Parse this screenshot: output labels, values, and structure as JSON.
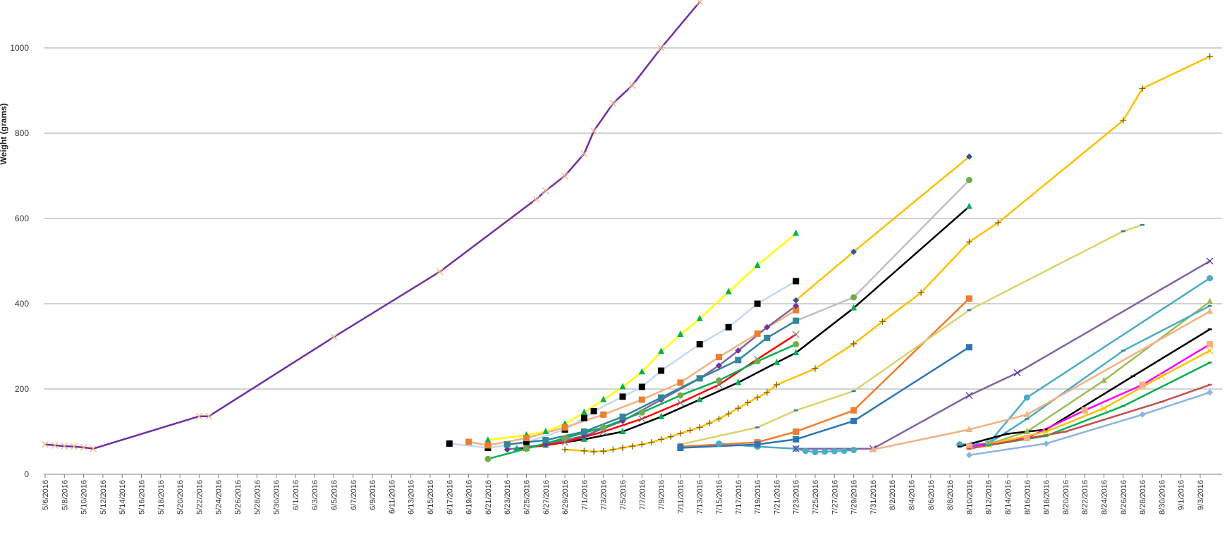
{
  "chart_data": {
    "type": "line",
    "title": "",
    "xlabel": "",
    "ylabel": "Weight (grams)",
    "x_axis_type": "date",
    "xlim": [
      "2016-05-06",
      "2016-09-05"
    ],
    "ylim": [
      0,
      1100
    ],
    "y_ticks": [
      0,
      200,
      400,
      600,
      800,
      1000
    ],
    "x_tick_start": "2016-05-06",
    "x_tick_end": "2016-09-03",
    "x_tick_step_days": 2,
    "x_tick_labels": [
      "5/6/2016",
      "5/8/2016",
      "5/10/2016",
      "5/12/2016",
      "5/14/2016",
      "5/16/2016",
      "5/18/2016",
      "5/20/2016",
      "5/22/2016",
      "5/24/2016",
      "5/26/2016",
      "5/28/2016",
      "5/30/2016",
      "6/1/2016",
      "6/3/2016",
      "6/5/2016",
      "6/7/2016",
      "6/9/2016",
      "6/11/2016",
      "6/13/2016",
      "6/15/2016",
      "6/17/2016",
      "6/19/2016",
      "6/21/2016",
      "6/23/2016",
      "6/25/2016",
      "6/27/2016",
      "6/29/2016",
      "7/1/2016",
      "7/3/2016",
      "7/5/2016",
      "7/7/2016",
      "7/9/2016",
      "7/11/2016",
      "7/13/2016",
      "7/15/2016",
      "7/17/2016",
      "7/19/2016",
      "7/21/2016",
      "7/23/2016",
      "7/25/2016",
      "7/27/2016",
      "7/29/2016",
      "7/31/2016",
      "8/2/2016",
      "8/4/2016",
      "8/6/2016",
      "8/8/2016",
      "8/10/2016",
      "8/12/2016",
      "8/14/2016",
      "8/16/2016",
      "8/18/2016",
      "8/20/2016",
      "8/22/2016",
      "8/24/2016",
      "8/26/2016",
      "8/28/2016",
      "8/30/2016",
      "9/1/2016",
      "9/3/2016"
    ],
    "grid": true,
    "legend": "none",
    "series": [
      {
        "color": "#7030A0",
        "marker": "x",
        "marker_color": "#F4B183",
        "points": [
          [
            "2016-05-06",
            70
          ],
          [
            "2016-05-07",
            68
          ],
          [
            "2016-05-08",
            66
          ],
          [
            "2016-05-09",
            65
          ],
          [
            "2016-05-10",
            63
          ],
          [
            "2016-05-11",
            60
          ],
          [
            "2016-05-22",
            136
          ],
          [
            "2016-05-23",
            136
          ],
          [
            "2016-06-05",
            322
          ],
          [
            "2016-06-16",
            475
          ],
          [
            "2016-06-26",
            645
          ],
          [
            "2016-06-27",
            665
          ],
          [
            "2016-06-29",
            700
          ],
          [
            "2016-07-01",
            752
          ],
          [
            "2016-07-02",
            805
          ],
          [
            "2016-07-04",
            870
          ],
          [
            "2016-07-06",
            912
          ],
          [
            "2016-07-09",
            1000
          ],
          [
            "2016-07-13",
            1108
          ]
        ]
      },
      {
        "color": "#FFC000",
        "marker": "plus",
        "marker_color": "#7F6000",
        "points": [
          [
            "2016-06-29",
            58
          ],
          [
            "2016-07-01",
            55
          ],
          [
            "2016-07-02",
            53
          ],
          [
            "2016-07-03",
            54
          ],
          [
            "2016-07-04",
            58
          ],
          [
            "2016-07-05",
            62
          ],
          [
            "2016-07-06",
            66
          ],
          [
            "2016-07-07",
            70
          ],
          [
            "2016-07-08",
            75
          ],
          [
            "2016-07-09",
            82
          ],
          [
            "2016-07-10",
            88
          ],
          [
            "2016-07-11",
            96
          ],
          [
            "2016-07-12",
            103
          ],
          [
            "2016-07-13",
            110
          ],
          [
            "2016-07-14",
            120
          ],
          [
            "2016-07-15",
            130
          ],
          [
            "2016-07-16",
            142
          ],
          [
            "2016-07-17",
            155
          ],
          [
            "2016-07-18",
            168
          ],
          [
            "2016-07-19",
            180
          ],
          [
            "2016-07-20",
            192
          ],
          [
            "2016-07-21",
            210
          ],
          [
            "2016-07-25",
            248
          ],
          [
            "2016-07-29",
            306
          ],
          [
            "2016-08-01",
            358
          ],
          [
            "2016-08-05",
            426
          ],
          [
            "2016-08-10",
            545
          ],
          [
            "2016-08-13",
            590
          ],
          [
            "2016-08-26",
            830
          ],
          [
            "2016-08-28",
            905
          ],
          [
            "2016-09-04",
            980
          ]
        ]
      },
      {
        "color": "#FFFF00",
        "marker": "triangle",
        "marker_color": "#00B050",
        "points": [
          [
            "2016-06-21",
            80
          ],
          [
            "2016-06-25",
            92
          ],
          [
            "2016-06-27",
            100
          ],
          [
            "2016-06-29",
            118
          ],
          [
            "2016-07-01",
            145
          ],
          [
            "2016-07-03",
            175
          ],
          [
            "2016-07-05",
            205
          ],
          [
            "2016-07-07",
            240
          ],
          [
            "2016-07-09",
            288
          ],
          [
            "2016-07-11",
            328
          ],
          [
            "2016-07-13",
            365
          ],
          [
            "2016-07-16",
            428
          ],
          [
            "2016-07-19",
            490
          ],
          [
            "2016-07-23",
            565
          ]
        ]
      },
      {
        "color": "#FFC000",
        "marker": "diamond",
        "marker_color": "#2F5597",
        "points": [
          [
            "2016-07-23",
            408
          ],
          [
            "2016-07-29",
            522
          ],
          [
            "2016-08-10",
            745
          ]
        ]
      },
      {
        "color": "#BFBFBF",
        "marker": "circle",
        "marker_color": "#70AD47",
        "points": [
          [
            "2016-07-23",
            360
          ],
          [
            "2016-07-29",
            415
          ],
          [
            "2016-08-10",
            690
          ]
        ]
      },
      {
        "color": "#000000",
        "marker": "triangle",
        "marker_color": "#00B050",
        "points": [
          [
            "2016-06-24",
            60
          ],
          [
            "2016-06-27",
            68
          ],
          [
            "2016-07-01",
            82
          ],
          [
            "2016-07-05",
            100
          ],
          [
            "2016-07-09",
            135
          ],
          [
            "2016-07-13",
            175
          ],
          [
            "2016-07-17",
            215
          ],
          [
            "2016-07-21",
            262
          ],
          [
            "2016-07-23",
            285
          ],
          [
            "2016-07-29",
            390
          ],
          [
            "2016-08-10",
            628
          ]
        ]
      },
      {
        "color": "#C5D9F1",
        "marker": "square",
        "marker_color": "#000000",
        "points": [
          [
            "2016-06-17",
            72
          ],
          [
            "2016-06-21",
            62
          ],
          [
            "2016-06-25",
            75
          ],
          [
            "2016-06-29",
            105
          ],
          [
            "2016-07-01",
            132
          ],
          [
            "2016-07-02",
            148
          ],
          [
            "2016-07-05",
            182
          ],
          [
            "2016-07-07",
            205
          ],
          [
            "2016-07-09",
            243
          ],
          [
            "2016-07-13",
            305
          ],
          [
            "2016-07-16",
            345
          ],
          [
            "2016-07-19",
            400
          ],
          [
            "2016-07-23",
            453
          ]
        ]
      },
      {
        "color": "#F4B183",
        "marker": "square",
        "marker_color": "#ED7D31",
        "points": [
          [
            "2016-06-19",
            76
          ],
          [
            "2016-06-21",
            68
          ],
          [
            "2016-06-25",
            85
          ],
          [
            "2016-06-29",
            110
          ],
          [
            "2016-07-03",
            140
          ],
          [
            "2016-07-07",
            175
          ],
          [
            "2016-07-11",
            215
          ],
          [
            "2016-07-15",
            275
          ],
          [
            "2016-07-19",
            330
          ],
          [
            "2016-07-23",
            385
          ]
        ]
      },
      {
        "color": "#8064A2",
        "marker": "diamond",
        "marker_color": "#7030A0",
        "points": [
          [
            "2016-06-23",
            58
          ],
          [
            "2016-06-27",
            70
          ],
          [
            "2016-07-01",
            90
          ],
          [
            "2016-07-05",
            125
          ],
          [
            "2016-07-09",
            175
          ],
          [
            "2016-07-13",
            225
          ],
          [
            "2016-07-15",
            255
          ],
          [
            "2016-07-17",
            290
          ],
          [
            "2016-07-20",
            345
          ],
          [
            "2016-07-23",
            395
          ]
        ]
      },
      {
        "color": "#31859C",
        "marker": "square",
        "marker_color": "#31859C",
        "points": [
          [
            "2016-06-23",
            70
          ],
          [
            "2016-06-27",
            80
          ],
          [
            "2016-07-01",
            100
          ],
          [
            "2016-07-05",
            135
          ],
          [
            "2016-07-09",
            180
          ],
          [
            "2016-07-13",
            225
          ],
          [
            "2016-07-17",
            268
          ],
          [
            "2016-07-20",
            320
          ],
          [
            "2016-07-23",
            360
          ]
        ]
      },
      {
        "color": "#FF0000",
        "marker": "x",
        "marker_color": "#808080",
        "points": [
          [
            "2016-06-25",
            62
          ],
          [
            "2016-06-29",
            75
          ],
          [
            "2016-07-03",
            100
          ],
          [
            "2016-07-07",
            130
          ],
          [
            "2016-07-11",
            168
          ],
          [
            "2016-07-15",
            210
          ],
          [
            "2016-07-19",
            270
          ],
          [
            "2016-07-23",
            328
          ]
        ]
      },
      {
        "color": "#00B050",
        "marker": "circle",
        "marker_color": "#70AD47",
        "points": [
          [
            "2016-06-21",
            36
          ],
          [
            "2016-06-25",
            60
          ],
          [
            "2016-06-29",
            85
          ],
          [
            "2016-07-03",
            110
          ],
          [
            "2016-07-07",
            145
          ],
          [
            "2016-07-11",
            185
          ],
          [
            "2016-07-15",
            220
          ],
          [
            "2016-07-19",
            265
          ],
          [
            "2016-07-23",
            305
          ]
        ]
      },
      {
        "color": "#4BACC6",
        "marker": "circle",
        "marker_color": "#4BACC6",
        "points": [
          [
            "2016-07-15",
            72
          ],
          [
            "2016-07-19",
            65
          ],
          [
            "2016-07-23",
            60
          ],
          [
            "2016-07-24",
            55
          ],
          [
            "2016-07-25",
            52
          ],
          [
            "2016-07-26",
            53
          ],
          [
            "2016-07-27",
            54
          ],
          [
            "2016-07-28",
            55
          ],
          [
            "2016-07-29",
            57
          ]
        ]
      },
      {
        "color": "#ED7D31",
        "marker": "square",
        "marker_color": "#ED7D31",
        "points": [
          [
            "2016-07-11",
            65
          ],
          [
            "2016-07-19",
            75
          ],
          [
            "2016-07-23",
            100
          ],
          [
            "2016-07-29",
            150
          ],
          [
            "2016-08-10",
            412
          ]
        ]
      },
      {
        "color": "#2E75B6",
        "marker": "square",
        "marker_color": "#2E75B6",
        "points": [
          [
            "2016-07-11",
            62
          ],
          [
            "2016-07-19",
            70
          ],
          [
            "2016-07-23",
            82
          ],
          [
            "2016-07-29",
            125
          ],
          [
            "2016-08-10",
            298
          ]
        ]
      },
      {
        "color": "#D9D36B",
        "marker": "dash",
        "marker_color": "#2E75B6",
        "points": [
          [
            "2016-07-11",
            70
          ],
          [
            "2016-07-19",
            110
          ],
          [
            "2016-07-23",
            150
          ],
          [
            "2016-07-29",
            195
          ],
          [
            "2016-08-10",
            385
          ],
          [
            "2016-08-26",
            570
          ],
          [
            "2016-08-28",
            585
          ]
        ]
      },
      {
        "color": "#8064A2",
        "marker": "x",
        "marker_color": "#7030A0",
        "points": [
          [
            "2016-07-23",
            60
          ],
          [
            "2016-07-31",
            60
          ],
          [
            "2016-08-10",
            185
          ],
          [
            "2016-08-15",
            238
          ],
          [
            "2016-09-04",
            500
          ]
        ]
      },
      {
        "color": "#4BACC6",
        "marker": "circle",
        "marker_color": "#4BACC6",
        "points": [
          [
            "2016-08-09",
            70
          ],
          [
            "2016-08-12",
            72
          ],
          [
            "2016-08-16",
            180
          ],
          [
            "2016-09-04",
            460
          ]
        ]
      },
      {
        "color": "#9BBB59",
        "marker": "triangle",
        "marker_color": "#9BBB59",
        "points": [
          [
            "2016-08-12",
            70
          ],
          [
            "2016-08-16",
            100
          ],
          [
            "2016-08-24",
            220
          ],
          [
            "2016-09-04",
            405
          ]
        ]
      },
      {
        "color": "#4BACC6",
        "marker": "dash",
        "marker_color": "#31859C",
        "points": [
          [
            "2016-08-12",
            72
          ],
          [
            "2016-08-16",
            130
          ],
          [
            "2016-08-26",
            290
          ],
          [
            "2016-09-04",
            395
          ]
        ]
      },
      {
        "color": "#F4B183",
        "marker": "triangle",
        "marker_color": "#F4B183",
        "points": [
          [
            "2016-07-31",
            58
          ],
          [
            "2016-08-10",
            105
          ],
          [
            "2016-08-16",
            140
          ],
          [
            "2016-09-04",
            382
          ]
        ]
      },
      {
        "color": "#000000",
        "marker": "dash",
        "marker_color": "#000000",
        "points": [
          [
            "2016-08-09",
            65
          ],
          [
            "2016-08-14",
            95
          ],
          [
            "2016-08-18",
            105
          ],
          [
            "2016-08-27",
            230
          ],
          [
            "2016-09-04",
            340
          ]
        ]
      },
      {
        "color": "#FF00FF",
        "marker": "square",
        "marker_color": "#F4B183",
        "points": [
          [
            "2016-08-10",
            65
          ],
          [
            "2016-08-16",
            85
          ],
          [
            "2016-08-22",
            150
          ],
          [
            "2016-08-28",
            210
          ],
          [
            "2016-09-04",
            305
          ]
        ]
      },
      {
        "color": "#FFC000",
        "marker": "x",
        "marker_color": "#FFC000",
        "points": [
          [
            "2016-08-12",
            70
          ],
          [
            "2016-08-18",
            100
          ],
          [
            "2016-08-24",
            155
          ],
          [
            "2016-08-30",
            230
          ],
          [
            "2016-09-04",
            290
          ]
        ]
      },
      {
        "color": "#00B050",
        "marker": "dash",
        "marker_color": "#00B050",
        "points": [
          [
            "2016-08-12",
            68
          ],
          [
            "2016-08-18",
            90
          ],
          [
            "2016-08-26",
            160
          ],
          [
            "2016-09-04",
            262
          ]
        ]
      },
      {
        "color": "#8DB3E2",
        "marker": "diamond",
        "marker_color": "#8DB3E2",
        "points": [
          [
            "2016-08-10",
            45
          ],
          [
            "2016-08-18",
            72
          ],
          [
            "2016-08-28",
            140
          ],
          [
            "2016-09-04",
            192
          ]
        ]
      },
      {
        "color": "#C0504D",
        "marker": "dash",
        "marker_color": "#C0504D",
        "points": [
          [
            "2016-08-10",
            60
          ],
          [
            "2016-08-20",
            100
          ],
          [
            "2016-08-30",
            170
          ],
          [
            "2016-09-04",
            210
          ]
        ]
      }
    ]
  }
}
